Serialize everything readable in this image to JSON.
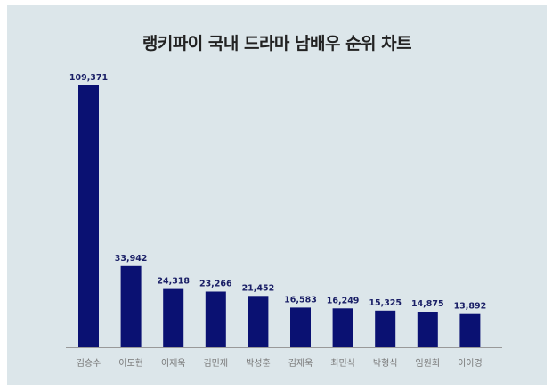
{
  "chart_data": {
    "type": "bar",
    "title": "랭키파이 국내 드라마 남배우 순위 차트",
    "categories": [
      "김승수",
      "이도현",
      "이재욱",
      "김민재",
      "박성훈",
      "김재욱",
      "최민식",
      "박형식",
      "임원희",
      "이이경"
    ],
    "values": [
      109371,
      33942,
      24318,
      23266,
      21452,
      16583,
      16249,
      15325,
      14875,
      13892
    ],
    "value_labels": [
      "109,371",
      "33,942",
      "24,318",
      "23,266",
      "21,452",
      "16,583",
      "16,249",
      "15,325",
      "14,875",
      "13,892"
    ],
    "xlabel": "",
    "ylabel": "",
    "ylim": [
      0,
      109371
    ],
    "grid": false,
    "legend": "none",
    "bar_color": "#0a1172",
    "background_color": "#dce6ea",
    "axis_color": "#999999"
  }
}
